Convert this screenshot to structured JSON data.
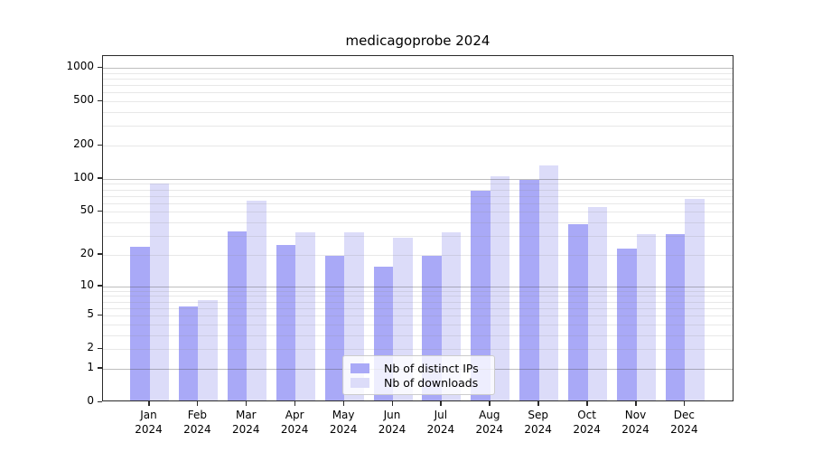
{
  "chart_data": {
    "type": "bar",
    "title": "medicagoprobe 2024",
    "categories": [
      "Jan 2024",
      "Feb 2024",
      "Mar 2024",
      "Apr 2024",
      "May 2024",
      "Jun 2024",
      "Jul 2024",
      "Aug 2024",
      "Sep 2024",
      "Oct 2024",
      "Nov 2024",
      "Dec 2024"
    ],
    "series": [
      {
        "name": "Nb of distinct IPs",
        "color": "#a9a9f7",
        "values": [
          23,
          6,
          32,
          24,
          19,
          15,
          19,
          75,
          94,
          37,
          22,
          30
        ]
      },
      {
        "name": "Nb of downloads",
        "color": "#dcdcf9",
        "values": [
          88,
          7,
          61,
          31,
          31,
          28,
          31,
          101,
          128,
          53,
          30,
          63
        ]
      }
    ],
    "yscale": "log1p",
    "ylim": [
      0,
      1300
    ],
    "yticks": [
      0,
      1,
      2,
      5,
      10,
      20,
      50,
      100,
      200,
      500,
      1000
    ],
    "grid": "horizontal major and minor, drawn over bars",
    "legend_position": "lower center"
  }
}
